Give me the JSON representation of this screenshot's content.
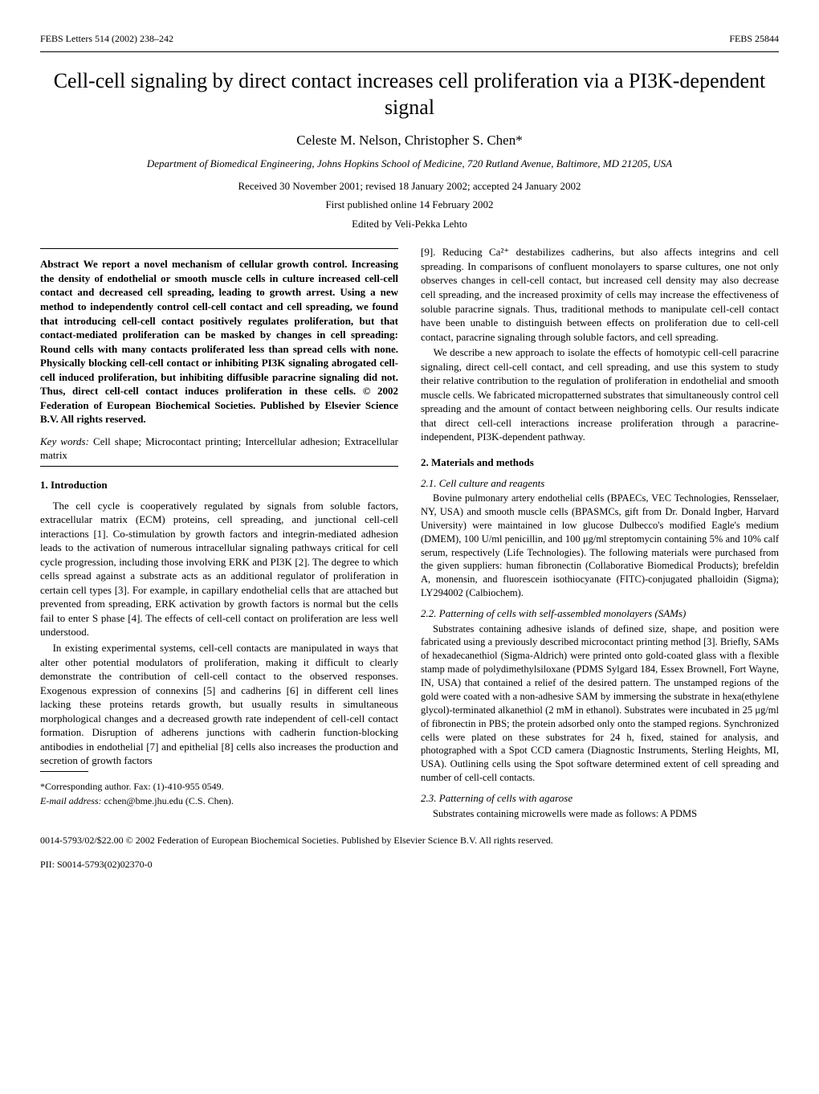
{
  "header": {
    "left": "FEBS Letters 514 (2002) 238–242",
    "right": "FEBS 25844"
  },
  "title": "Cell-cell signaling by direct contact increases cell proliferation via a PI3K-dependent signal",
  "authors": "Celeste M. Nelson, Christopher S. Chen*",
  "affiliation": "Department of Biomedical Engineering, Johns Hopkins School of Medicine, 720 Rutland Avenue, Baltimore, MD 21205, USA",
  "received": "Received 30 November 2001; revised 18 January 2002; accepted 24 January 2002",
  "first_published": "First published online 14 February 2002",
  "edited_by": "Edited by Veli-Pekka Lehto",
  "abstract_label": "Abstract",
  "abstract_body": "We report a novel mechanism of cellular growth control. Increasing the density of endothelial or smooth muscle cells in culture increased cell-cell contact and decreased cell spreading, leading to growth arrest. Using a new method to independently control cell-cell contact and cell spreading, we found that introducing cell-cell contact positively regulates proliferation, but that contact-mediated proliferation can be masked by changes in cell spreading: Round cells with many contacts proliferated less than spread cells with none. Physically blocking cell-cell contact or inhibiting PI3K signaling abrogated cell-cell induced proliferation, but inhibiting diffusible paracrine signaling did not. Thus, direct cell-cell contact induces proliferation in these cells. © 2002 Federation of European Biochemical Societies. Published by Elsevier Science B.V. All rights reserved.",
  "keywords_label": "Key words:",
  "keywords_body": "Cell shape; Microcontact printing; Intercellular adhesion; Extracellular matrix",
  "section1_heading": "1. Introduction",
  "section1_p1": "The cell cycle is cooperatively regulated by signals from soluble factors, extracellular matrix (ECM) proteins, cell spreading, and junctional cell-cell interactions [1]. Co-stimulation by growth factors and integrin-mediated adhesion leads to the activation of numerous intracellular signaling pathways critical for cell cycle progression, including those involving ERK and PI3K [2]. The degree to which cells spread against a substrate acts as an additional regulator of proliferation in certain cell types [3]. For example, in capillary endothelial cells that are attached but prevented from spreading, ERK activation by growth factors is normal but the cells fail to enter S phase [4]. The effects of cell-cell contact on proliferation are less well understood.",
  "section1_p2": "In existing experimental systems, cell-cell contacts are manipulated in ways that alter other potential modulators of proliferation, making it difficult to clearly demonstrate the contribution of cell-cell contact to the observed responses. Exogenous expression of connexins [5] and cadherins [6] in different cell lines lacking these proteins retards growth, but usually results in simultaneous morphological changes and a decreased growth rate independent of cell-cell contact formation. Disruption of adherens junctions with cadherin function-blocking antibodies in endothelial [7] and epithelial [8] cells also increases the production and secretion of growth factors",
  "footnote_corr": "*Corresponding author. Fax: (1)-410-955 0549.",
  "footnote_email_label": "E-mail address:",
  "footnote_email": "cchen@bme.jhu.edu (C.S. Chen).",
  "right_p1": "[9]. Reducing Ca²⁺ destabilizes cadherins, but also affects integrins and cell spreading. In comparisons of confluent monolayers to sparse cultures, one not only observes changes in cell-cell contact, but increased cell density may also decrease cell spreading, and the increased proximity of cells may increase the effectiveness of soluble paracrine signals. Thus, traditional methods to manipulate cell-cell contact have been unable to distinguish between effects on proliferation due to cell-cell contact, paracrine signaling through soluble factors, and cell spreading.",
  "right_p2": "We describe a new approach to isolate the effects of homotypic cell-cell paracrine signaling, direct cell-cell contact, and cell spreading, and use this system to study their relative contribution to the regulation of proliferation in endothelial and smooth muscle cells. We fabricated micropatterned substrates that simultaneously control cell spreading and the amount of contact between neighboring cells. Our results indicate that direct cell-cell interactions increase proliferation through a paracrine-independent, PI3K-dependent pathway.",
  "section2_heading": "2. Materials and methods",
  "sub21_heading": "2.1. Cell culture and reagents",
  "sub21_body": "Bovine pulmonary artery endothelial cells (BPAECs, VEC Technologies, Rensselaer, NY, USA) and smooth muscle cells (BPASMCs, gift from Dr. Donald Ingber, Harvard University) were maintained in low glucose Dulbecco's modified Eagle's medium (DMEM), 100 U/ml penicillin, and 100 μg/ml streptomycin containing 5% and 10% calf serum, respectively (Life Technologies). The following materials were purchased from the given suppliers: human fibronectin (Collaborative Biomedical Products); brefeldin A, monensin, and fluorescein isothiocyanate (FITC)-conjugated phalloidin (Sigma); LY294002 (Calbiochem).",
  "sub22_heading": "2.2. Patterning of cells with self-assembled monolayers (SAMs)",
  "sub22_body": "Substrates containing adhesive islands of defined size, shape, and position were fabricated using a previously described microcontact printing method [3]. Briefly, SAMs of hexadecanethiol (Sigma-Aldrich) were printed onto gold-coated glass with a flexible stamp made of polydimethylsiloxane (PDMS Sylgard 184, Essex Brownell, Fort Wayne, IN, USA) that contained a relief of the desired pattern. The unstamped regions of the gold were coated with a non-adhesive SAM by immersing the substrate in hexa(ethylene glycol)-terminated alkanethiol (2 mM in ethanol). Substrates were incubated in 25 μg/ml of fibronectin in PBS; the protein adsorbed only onto the stamped regions. Synchronized cells were plated on these substrates for 24 h, fixed, stained for analysis, and photographed with a Spot CCD camera (Diagnostic Instruments, Sterling Heights, MI, USA). Outlining cells using the Spot software determined extent of cell spreading and number of cell-cell contacts.",
  "sub23_heading": "2.3. Patterning of cells with agarose",
  "sub23_body": "Substrates containing microwells were made as follows: A PDMS",
  "footer_copyright": "0014-5793/02/$22.00 © 2002 Federation of European Biochemical Societies. Published by Elsevier Science B.V. All rights reserved.",
  "footer_pii": "PII: S0014-5793(02)02370-0"
}
